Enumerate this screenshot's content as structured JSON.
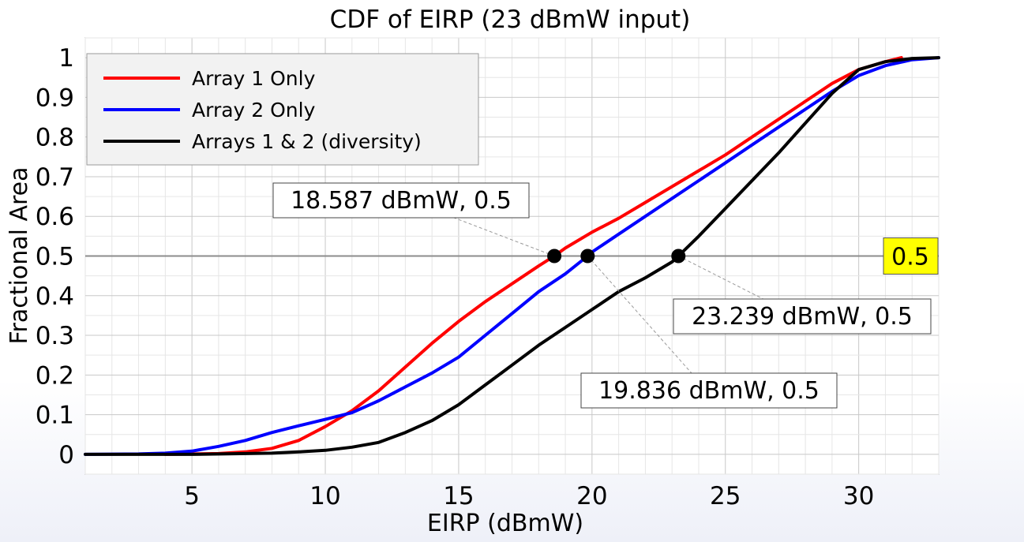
{
  "chart_data": {
    "type": "line",
    "title": "CDF of EIRP (23 dBmW input)",
    "xlabel": "EIRP (dBmW)",
    "ylabel": "Fractional Area",
    "xlim": [
      1,
      33
    ],
    "ylim": [
      -0.05,
      1.05
    ],
    "xticks": [
      5,
      10,
      15,
      20,
      25,
      30
    ],
    "yticks": [
      0,
      0.1,
      0.2,
      0.3,
      0.4,
      0.5,
      0.6,
      0.7,
      0.8,
      0.9,
      1
    ],
    "ytick_labels": [
      "0",
      "0.1",
      "0.2",
      "0.3",
      "0.4",
      "0.5",
      "0.6",
      "0.7",
      "0.8",
      "0.9",
      "1"
    ],
    "grid": true,
    "legend_position": "top-left",
    "series": [
      {
        "name": "Array 1 Only",
        "color": "#ff0000",
        "x": [
          4,
          6,
          7,
          8,
          9,
          10,
          11,
          12,
          13,
          14,
          15,
          16,
          17,
          18,
          18.587,
          19,
          20,
          21,
          22,
          23,
          24,
          25,
          26,
          27,
          28,
          29,
          30,
          31,
          31.6
        ],
        "y": [
          0,
          0.002,
          0.006,
          0.015,
          0.035,
          0.07,
          0.11,
          0.16,
          0.22,
          0.28,
          0.335,
          0.385,
          0.43,
          0.475,
          0.5,
          0.52,
          0.56,
          0.595,
          0.635,
          0.675,
          0.715,
          0.755,
          0.8,
          0.845,
          0.89,
          0.935,
          0.97,
          0.99,
          1.0
        ]
      },
      {
        "name": "Array 2 Only",
        "color": "#0000ff",
        "x": [
          1,
          3,
          4,
          5,
          6,
          7,
          8,
          9,
          10,
          11,
          12,
          13,
          14,
          15,
          16,
          17,
          18,
          19,
          19.836,
          20,
          21,
          22,
          23,
          24,
          25,
          26,
          27,
          28,
          29,
          30,
          31,
          32,
          33
        ],
        "y": [
          0,
          0.001,
          0.003,
          0.008,
          0.02,
          0.035,
          0.055,
          0.072,
          0.088,
          0.105,
          0.135,
          0.17,
          0.205,
          0.245,
          0.3,
          0.355,
          0.41,
          0.455,
          0.5,
          0.51,
          0.555,
          0.6,
          0.645,
          0.69,
          0.735,
          0.78,
          0.825,
          0.87,
          0.915,
          0.955,
          0.98,
          0.995,
          1.0
        ]
      },
      {
        "name": "Arrays 1 & 2 (diversity)",
        "color": "#000000",
        "x": [
          1,
          5,
          8,
          9,
          10,
          11,
          12,
          13,
          14,
          15,
          16,
          17,
          18,
          19,
          20,
          21,
          22,
          23,
          23.239,
          24,
          25,
          26,
          27,
          28,
          29,
          30,
          31,
          32,
          33
        ],
        "y": [
          0,
          0,
          0.003,
          0.006,
          0.01,
          0.018,
          0.03,
          0.055,
          0.085,
          0.125,
          0.175,
          0.225,
          0.275,
          0.32,
          0.365,
          0.41,
          0.445,
          0.485,
          0.5,
          0.55,
          0.62,
          0.69,
          0.76,
          0.835,
          0.91,
          0.97,
          0.99,
          0.998,
          1.0
        ]
      }
    ],
    "annotations": [
      {
        "text": "18.587 dBmW, 0.5",
        "x": 18.587,
        "y": 0.5
      },
      {
        "text": "19.836 dBmW, 0.5",
        "x": 19.836,
        "y": 0.5
      },
      {
        "text": "23.239 dBmW, 0.5",
        "x": 23.239,
        "y": 0.5
      }
    ],
    "reference_line": {
      "y": 0.5,
      "label": "0.5",
      "label_color": "#ffff00"
    }
  }
}
